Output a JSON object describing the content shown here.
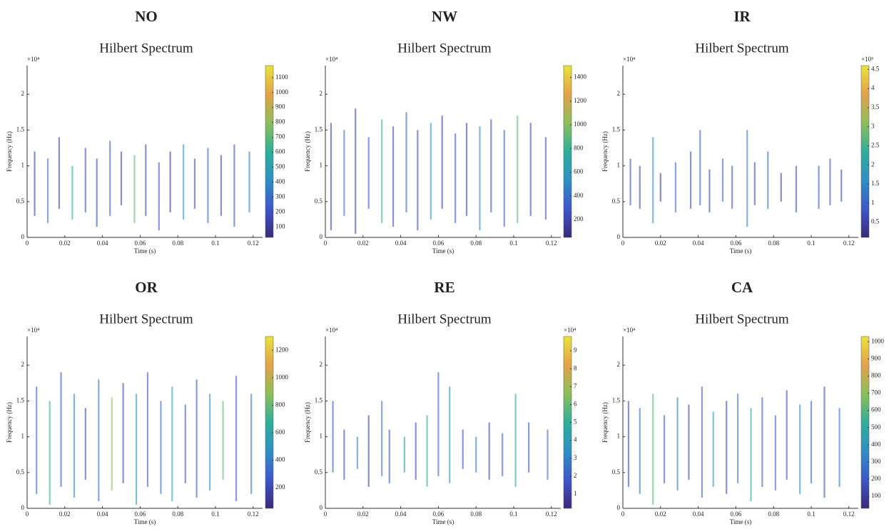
{
  "chart_data": [
    {
      "type": "spectrum",
      "title": "NO",
      "subtitle": "Hilbert Spectrum",
      "x_label": "Time (s)",
      "y_label": "Frequency (Hz)",
      "y_multiplier": "×10⁴",
      "xlim": [
        0,
        0.125
      ],
      "xticks": [
        0,
        0.02,
        0.04,
        0.06,
        0.08,
        0.1,
        0.12
      ],
      "ylim": [
        0,
        2.4
      ],
      "yticks": [
        0,
        0.5,
        1,
        1.5,
        2
      ],
      "clim": [
        30,
        1180
      ],
      "cticks": [
        100,
        200,
        300,
        400,
        500,
        600,
        700,
        800,
        900,
        1000,
        1100
      ],
      "colormap": [
        "#3b2a7a",
        "#3d57c9",
        "#2f8fc4",
        "#2eaf9a",
        "#8cbf5a",
        "#e3a14a",
        "#e9e33a"
      ],
      "segments": {
        "t": [
          0.004,
          0.011,
          0.017,
          0.024,
          0.031,
          0.037,
          0.044,
          0.05,
          0.057,
          0.063,
          0.07,
          0.076,
          0.083,
          0.089,
          0.096,
          0.103,
          0.11,
          0.118
        ],
        "f_low": [
          0.3,
          0.2,
          0.4,
          0.25,
          0.35,
          0.15,
          0.3,
          0.45,
          0.2,
          0.3,
          0.1,
          0.35,
          0.25,
          0.4,
          0.2,
          0.3,
          0.15,
          0.35
        ],
        "f_high": [
          1.2,
          1.1,
          1.4,
          1.0,
          1.25,
          1.1,
          1.35,
          1.2,
          1.15,
          1.3,
          1.05,
          1.2,
          1.3,
          1.1,
          1.25,
          1.15,
          1.3,
          1.2
        ],
        "amplitude": [
          150,
          300,
          120,
          600,
          200,
          180,
          250,
          140,
          700,
          160,
          220,
          130,
          450,
          170,
          260,
          150,
          190,
          350
        ]
      }
    },
    {
      "type": "spectrum",
      "title": "NW",
      "subtitle": "Hilbert Spectrum",
      "x_label": "Time (s)",
      "y_label": "Frequency (Hz)",
      "y_multiplier": "×10⁴",
      "xlim": [
        0,
        0.125
      ],
      "xticks": [
        0,
        0.02,
        0.04,
        0.06,
        0.08,
        0.1,
        0.12
      ],
      "ylim": [
        0,
        2.4
      ],
      "yticks": [
        0,
        0.5,
        1,
        1.5,
        2
      ],
      "clim": [
        50,
        1500
      ],
      "cticks": [
        200,
        400,
        600,
        800,
        1000,
        1200,
        1400
      ],
      "colormap": [
        "#3b2a7a",
        "#3d57c9",
        "#2f8fc4",
        "#2eaf9a",
        "#8cbf5a",
        "#e3a14a",
        "#e9e33a"
      ],
      "segments": {
        "t": [
          0.003,
          0.01,
          0.016,
          0.023,
          0.03,
          0.036,
          0.043,
          0.049,
          0.056,
          0.062,
          0.069,
          0.075,
          0.082,
          0.088,
          0.095,
          0.102,
          0.109,
          0.117
        ],
        "f_low": [
          0.1,
          0.3,
          0.05,
          0.4,
          0.2,
          0.15,
          0.35,
          0.1,
          0.25,
          0.4,
          0.2,
          0.3,
          0.1,
          0.35,
          0.15,
          0.2,
          0.3,
          0.25
        ],
        "f_high": [
          1.6,
          1.5,
          1.8,
          1.4,
          1.65,
          1.55,
          1.75,
          1.5,
          1.6,
          1.7,
          1.45,
          1.6,
          1.55,
          1.65,
          1.5,
          1.7,
          1.6,
          1.4
        ],
        "amplitude": [
          200,
          400,
          180,
          300,
          800,
          220,
          350,
          250,
          600,
          190,
          280,
          210,
          500,
          240,
          320,
          900,
          230,
          260
        ]
      }
    },
    {
      "type": "spectrum",
      "title": "IR",
      "subtitle": "Hilbert Spectrum",
      "x_label": "Time (s)",
      "y_label": "Frequency (Hz)",
      "y_multiplier": "×10⁴",
      "c_multiplier": "×10⁵",
      "xlim": [
        0,
        0.125
      ],
      "xticks": [
        0,
        0.02,
        0.04,
        0.06,
        0.08,
        0.1,
        0.12
      ],
      "ylim": [
        0,
        2.4
      ],
      "yticks": [
        0,
        0.5,
        1,
        1.5,
        2
      ],
      "clim": [
        0.1,
        4.6
      ],
      "cticks": [
        0.5,
        1,
        1.5,
        2,
        2.5,
        3,
        3.5,
        4,
        4.5
      ],
      "colormap": [
        "#3b2a7a",
        "#3d57c9",
        "#2f8fc4",
        "#2eaf9a",
        "#8cbf5a",
        "#e3a14a",
        "#e9e33a"
      ],
      "segments": {
        "t": [
          0.004,
          0.009,
          0.016,
          0.02,
          0.028,
          0.036,
          0.041,
          0.046,
          0.053,
          0.058,
          0.066,
          0.07,
          0.077,
          0.084,
          0.092,
          0.104,
          0.11,
          0.116
        ],
        "f_low": [
          0.45,
          0.4,
          0.2,
          0.5,
          0.35,
          0.4,
          0.45,
          0.35,
          0.5,
          0.4,
          0.15,
          0.45,
          0.4,
          0.5,
          0.35,
          0.4,
          0.45,
          0.5
        ],
        "f_high": [
          1.1,
          1.0,
          1.4,
          0.9,
          1.05,
          1.2,
          1.5,
          0.95,
          1.1,
          1.0,
          1.5,
          1.05,
          1.2,
          0.9,
          1.0,
          1.0,
          1.1,
          0.95
        ],
        "amplitude": [
          0.8,
          0.6,
          1.5,
          0.5,
          1.2,
          0.7,
          0.9,
          0.6,
          1.0,
          0.8,
          1.3,
          0.6,
          1.1,
          0.5,
          0.7,
          0.9,
          0.8,
          0.6
        ]
      }
    },
    {
      "type": "spectrum",
      "title": "OR",
      "subtitle": "Hilbert Spectrum",
      "x_label": "Time (s)",
      "y_label": "Frequency (Hz)",
      "y_multiplier": "×10⁴",
      "xlim": [
        0,
        0.125
      ],
      "xticks": [
        0,
        0.02,
        0.04,
        0.06,
        0.08,
        0.1,
        0.12
      ],
      "ylim": [
        0,
        2.4
      ],
      "yticks": [
        0,
        0.5,
        1,
        1.5,
        2
      ],
      "clim": [
        50,
        1300
      ],
      "cticks": [
        200,
        400,
        600,
        800,
        1000,
        1200
      ],
      "colormap": [
        "#3b2a7a",
        "#3d57c9",
        "#2f8fc4",
        "#2eaf9a",
        "#8cbf5a",
        "#e3a14a",
        "#e9e33a"
      ],
      "segments": {
        "t": [
          0.005,
          0.012,
          0.018,
          0.025,
          0.031,
          0.038,
          0.045,
          0.051,
          0.058,
          0.064,
          0.071,
          0.077,
          0.084,
          0.09,
          0.097,
          0.104,
          0.111,
          0.119
        ],
        "f_low": [
          0.2,
          0.05,
          0.3,
          0.15,
          0.4,
          0.1,
          0.25,
          0.35,
          0.05,
          0.3,
          0.2,
          0.1,
          0.35,
          0.15,
          0.25,
          0.4,
          0.1,
          0.2
        ],
        "f_high": [
          1.7,
          1.5,
          1.9,
          1.6,
          1.4,
          1.8,
          1.55,
          1.75,
          1.6,
          1.9,
          1.5,
          1.7,
          1.45,
          1.8,
          1.6,
          1.5,
          1.85,
          1.6
        ],
        "amplitude": [
          300,
          700,
          250,
          400,
          200,
          350,
          900,
          220,
          500,
          260,
          330,
          600,
          240,
          280,
          450,
          800,
          230,
          370
        ]
      }
    },
    {
      "type": "spectrum",
      "title": "RE",
      "subtitle": "Hilbert Spectrum",
      "x_label": "Time (s)",
      "y_label": "Frequency (Hz)",
      "y_multiplier": "×10⁴",
      "c_multiplier": "×10⁴",
      "xlim": [
        0,
        0.125
      ],
      "xticks": [
        0,
        0.02,
        0.04,
        0.06,
        0.08,
        0.1,
        0.12
      ],
      "ylim": [
        0,
        2.4
      ],
      "yticks": [
        0,
        0.5,
        1,
        1.5,
        2
      ],
      "clim": [
        0.2,
        9.8
      ],
      "cticks": [
        1,
        2,
        3,
        4,
        5,
        6,
        7,
        8,
        9
      ],
      "colormap": [
        "#3b2a7a",
        "#3d57c9",
        "#2f8fc4",
        "#2eaf9a",
        "#8cbf5a",
        "#e3a14a",
        "#e9e33a"
      ],
      "segments": {
        "t": [
          0.004,
          0.01,
          0.017,
          0.023,
          0.03,
          0.034,
          0.042,
          0.048,
          0.054,
          0.06,
          0.066,
          0.073,
          0.08,
          0.087,
          0.094,
          0.101,
          0.108,
          0.118
        ],
        "f_low": [
          0.5,
          0.4,
          0.55,
          0.3,
          0.45,
          0.35,
          0.5,
          0.4,
          0.3,
          0.45,
          0.35,
          0.55,
          0.5,
          0.4,
          0.45,
          0.3,
          0.5,
          0.4
        ],
        "f_high": [
          1.5,
          1.1,
          1.0,
          1.3,
          1.5,
          1.1,
          1.0,
          1.2,
          1.3,
          1.9,
          1.7,
          1.1,
          1.0,
          1.2,
          1.05,
          1.6,
          1.2,
          1.1
        ],
        "amplitude": [
          2,
          1.5,
          3,
          1.2,
          2.5,
          1.8,
          4,
          1.4,
          5,
          2.2,
          3.5,
          1.6,
          2.8,
          1.3,
          2,
          4.5,
          1.7,
          2.4
        ]
      }
    },
    {
      "type": "spectrum",
      "title": "CA",
      "subtitle": "Hilbert Spectrum",
      "x_label": "Time (s)",
      "y_label": "Frequency (Hz)",
      "y_multiplier": "×10⁴",
      "xlim": [
        0,
        0.125
      ],
      "xticks": [
        0,
        0.02,
        0.04,
        0.06,
        0.08,
        0.1,
        0.12
      ],
      "ylim": [
        0,
        2.4
      ],
      "yticks": [
        0,
        0.5,
        1,
        1.5,
        2
      ],
      "clim": [
        30,
        1030
      ],
      "cticks": [
        100,
        200,
        300,
        400,
        500,
        600,
        700,
        800,
        900,
        1000
      ],
      "colormap": [
        "#3b2a7a",
        "#3d57c9",
        "#2f8fc4",
        "#2eaf9a",
        "#8cbf5a",
        "#e3a14a",
        "#e9e33a"
      ],
      "segments": {
        "t": [
          0.003,
          0.009,
          0.016,
          0.022,
          0.029,
          0.035,
          0.042,
          0.048,
          0.055,
          0.061,
          0.068,
          0.074,
          0.081,
          0.087,
          0.094,
          0.1,
          0.107,
          0.115
        ],
        "f_low": [
          0.3,
          0.2,
          0.05,
          0.35,
          0.25,
          0.4,
          0.15,
          0.3,
          0.2,
          0.35,
          0.1,
          0.3,
          0.25,
          0.4,
          0.2,
          0.35,
          0.15,
          0.3
        ],
        "f_high": [
          1.5,
          1.4,
          1.6,
          1.3,
          1.55,
          1.45,
          1.7,
          1.35,
          1.5,
          1.6,
          1.4,
          1.55,
          1.3,
          1.65,
          1.45,
          1.5,
          1.7,
          1.4
        ],
        "amplitude": [
          150,
          250,
          600,
          180,
          300,
          140,
          220,
          400,
          160,
          270,
          500,
          190,
          230,
          170,
          350,
          210,
          160,
          280
        ]
      }
    }
  ]
}
